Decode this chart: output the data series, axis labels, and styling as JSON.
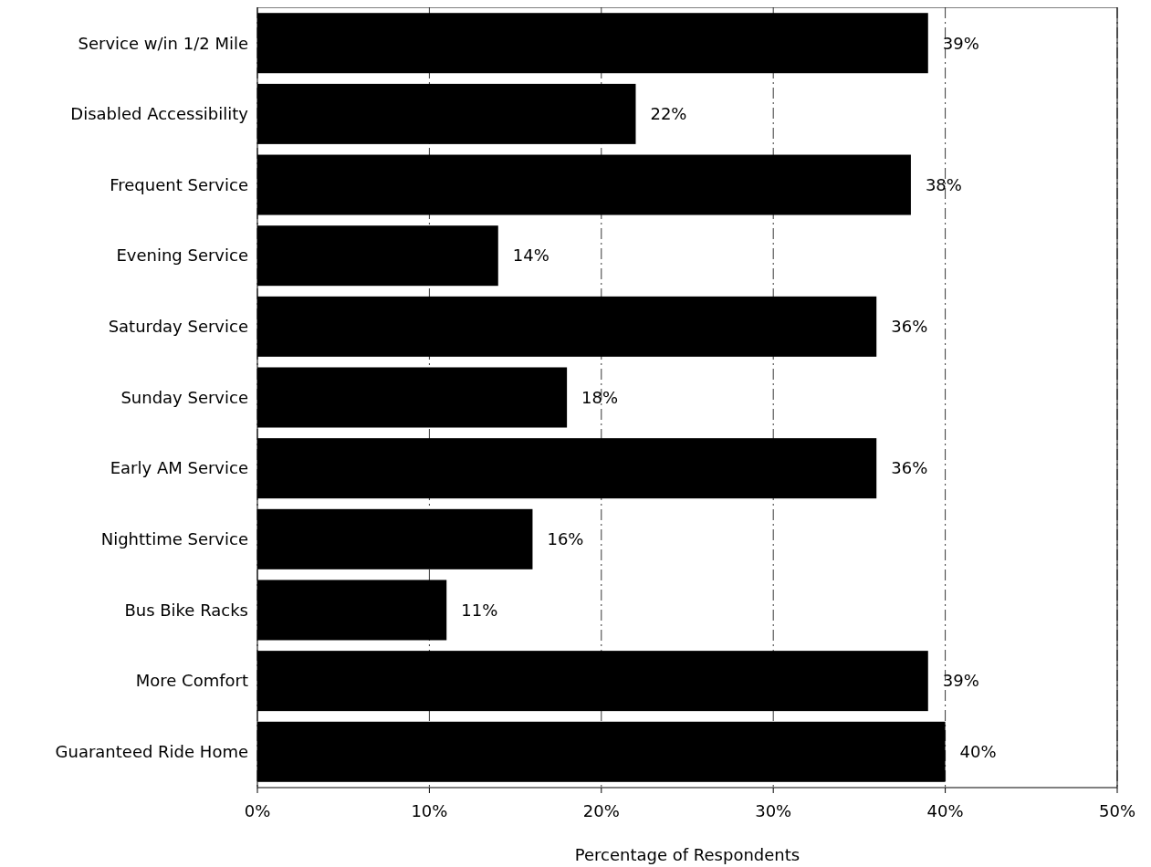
{
  "chart_data": {
    "type": "bar",
    "orientation": "horizontal",
    "xlabel": "Percentage of Respondents",
    "categories": [
      "Service w/in 1/2 Mile",
      "Disabled Accessibility",
      "Frequent Service",
      "Evening Service",
      "Saturday Service",
      "Sunday Service",
      "Early AM Service",
      "Nighttime Service",
      "Bus Bike Racks",
      "More Comfort",
      "Guaranteed Ride Home"
    ],
    "values": [
      39,
      22,
      38,
      14,
      36,
      18,
      36,
      16,
      11,
      39,
      40
    ],
    "value_labels": [
      "39%",
      "22%",
      "38%",
      "14%",
      "36%",
      "18%",
      "36%",
      "16%",
      "11%",
      "39%",
      "40%"
    ],
    "color": "#000000",
    "xlim": [
      0,
      50
    ],
    "xticks": [
      {
        "value": 0,
        "label": "0%"
      },
      {
        "value": 10,
        "label": "10%"
      },
      {
        "value": 20,
        "label": "20%"
      },
      {
        "value": 30,
        "label": "30%"
      },
      {
        "value": 40,
        "label": "40%"
      },
      {
        "value": 50,
        "label": "50%"
      }
    ],
    "grid": "x"
  }
}
